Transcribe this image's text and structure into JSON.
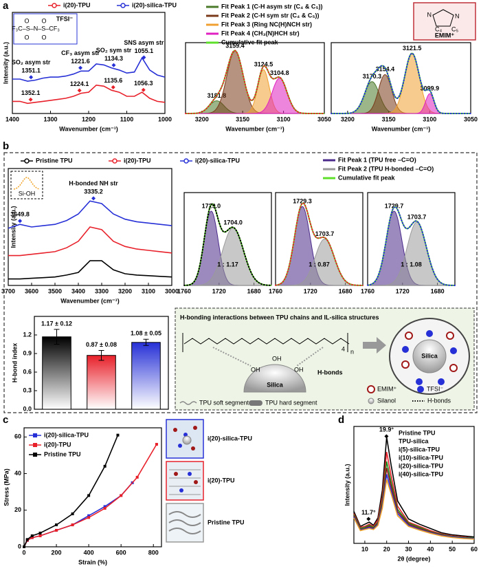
{
  "chart_data": [
    {
      "type": "line",
      "x_label": "Wavenumber (cm⁻¹)",
      "y_label": "Intensity (a.u.)",
      "x": [
        1400,
        1380,
        1360,
        1340,
        1320,
        1300,
        1280,
        1260,
        1240,
        1220,
        1200,
        1180,
        1160,
        1140,
        1120,
        1100,
        1080,
        1060,
        1040,
        1020,
        1000
      ],
      "xlim": [
        1400,
        1000
      ],
      "xticks": [
        1400,
        1300,
        1200,
        1100,
        1000
      ],
      "ylim": [
        0,
        10
      ],
      "series": [
        {
          "name": "i(20)-TPU",
          "color": "#e8202a",
          "values": [
            1.2,
            1.2,
            1.0,
            1.1,
            1.2,
            1.3,
            1.4,
            1.5,
            1.7,
            2.0,
            2.1,
            2.8,
            2.7,
            2.3,
            2.1,
            1.7,
            1.7,
            2.1,
            1.5,
            1.2,
            1.1
          ],
          "peaks": [
            {
              "x": 1352.1
            },
            {
              "x": 1224.1
            },
            {
              "x": 1135.6
            },
            {
              "x": 1056.3
            }
          ]
        },
        {
          "name": "i(20)-silica-TPU",
          "color": "#2630d6",
          "values": [
            3.4,
            3.4,
            3.2,
            3.3,
            3.5,
            3.6,
            3.6,
            3.7,
            3.9,
            4.2,
            4.2,
            4.9,
            4.8,
            4.5,
            4.3,
            4.0,
            4.1,
            5.5,
            4.3,
            3.8,
            3.6
          ],
          "peaks": [
            {
              "x": 1351.1,
              "name": "SO₂ asym str"
            },
            {
              "x": 1221.6,
              "name": "CF₃ asym str"
            },
            {
              "x": 1134.3,
              "name": "SO₂ sym str"
            },
            {
              "x": 1055.1,
              "name": "SNS asym str"
            }
          ]
        }
      ]
    },
    {
      "type": "fit",
      "x_label": "Wavenumber (cm⁻¹)",
      "xlim": [
        3220,
        3050
      ],
      "xticks": [
        3200,
        3150,
        3100,
        3050
      ],
      "ylim": [
        0,
        1
      ],
      "data_color": "#e8202a",
      "series": [
        {
          "name": "Fit Peak 1 (C-H asym str (C₄ & C₅))",
          "color": "#4a7a2a",
          "center": 3181.8,
          "height": 0.18,
          "width": 9
        },
        {
          "name": "Fit Peak 2 (C-H sym str (C₄ & C₅))",
          "color": "#7a3a1a",
          "center": 3159.4,
          "height": 0.88,
          "width": 10
        },
        {
          "name": "Fit Peak 3 (Ring NC(H)NCH str)",
          "color": "#f0a030",
          "center": 3124.5,
          "height": 0.62,
          "width": 7
        },
        {
          "name": "Fit Peak 4 (CH₃(N)HCH str)",
          "color": "#e020c0",
          "center": 3104.8,
          "height": 0.5,
          "width": 9
        }
      ],
      "cumulative": {
        "name": "Cumulative fit peak",
        "color": "#5ee02a"
      }
    },
    {
      "type": "fit",
      "x_label": "Wavenumber (cm⁻¹)",
      "xlim": [
        3220,
        3050
      ],
      "xticks": [
        3200,
        3150,
        3100,
        3050
      ],
      "ylim": [
        0,
        1
      ],
      "data_color": "#2630d6",
      "series": [
        {
          "color": "#4a7a2a",
          "center": 3170.3,
          "height": 0.45,
          "width": 9
        },
        {
          "color": "#7a3a1a",
          "center": 3154.4,
          "height": 0.55,
          "width": 8
        },
        {
          "color": "#f0a030",
          "center": 3121.5,
          "height": 0.85,
          "width": 9
        },
        {
          "color": "#e020c0",
          "center": 3099.9,
          "height": 0.28,
          "width": 5
        }
      ],
      "cumulative": {
        "color": "#5ee02a"
      }
    },
    {
      "type": "line",
      "x_label": "Wavenumber (cm⁻¹)",
      "y_label": "Intensity (a.u.)",
      "x": [
        3700,
        3650,
        3600,
        3550,
        3500,
        3450,
        3400,
        3350,
        3300,
        3250,
        3200,
        3150,
        3100,
        3050,
        3000
      ],
      "xlim": [
        3700,
        3000
      ],
      "xticks": [
        3700,
        3600,
        3500,
        3400,
        3300,
        3200,
        3100,
        3000
      ],
      "ylim": [
        0,
        9
      ],
      "series": [
        {
          "name": "Pristine TPU",
          "color": "#000000",
          "values": [
            0.5,
            0.5,
            0.55,
            0.6,
            0.65,
            0.8,
            1.0,
            1.9,
            1.9,
            1.2,
            0.9,
            0.8,
            0.75,
            0.7,
            0.65
          ]
        },
        {
          "name": "i(20)-TPU",
          "color": "#e8202a",
          "values": [
            2.3,
            2.3,
            2.4,
            2.5,
            2.6,
            2.9,
            3.4,
            4.5,
            4.3,
            3.4,
            3.0,
            2.8,
            2.7,
            2.6,
            2.5
          ]
        },
        {
          "name": "i(20)-silica-TPU",
          "color": "#2630d6",
          "values": [
            4.4,
            4.7,
            4.5,
            4.6,
            4.7,
            5.0,
            5.5,
            6.5,
            6.3,
            5.5,
            5.1,
            4.9,
            4.8,
            4.7,
            4.6
          ],
          "peaks": [
            {
              "x": 3649.8
            },
            {
              "x": 3335.2,
              "name": "H-bonded NH str"
            }
          ]
        }
      ]
    },
    {
      "type": "fit",
      "xlim": [
        1760,
        1660
      ],
      "xticks": [
        1760,
        1720,
        1680
      ],
      "ylim": [
        0,
        1
      ],
      "data_color": "#000000",
      "label_color": "#000000",
      "ratio_label": "1 : 1.17",
      "series": [
        {
          "name": "Fit Peak 1 (TPU free –C=O)",
          "color": "#4a2a8a",
          "center": {
            "value": 1729,
            "label": "1729.0"
          },
          "height": 0.8,
          "width": 8
        },
        {
          "name": "Fit Peak 2 (TPU H-bonded –C=O)",
          "color": "#9a9a9a",
          "center": {
            "value": 1704,
            "label": "1704.0"
          },
          "height": 0.62,
          "width": 12
        }
      ],
      "cumulative": {
        "name": "Cumulative fit peak",
        "color": "#5ee02a"
      }
    },
    {
      "type": "fit",
      "xlim": [
        1760,
        1660
      ],
      "xticks": [
        1760,
        1720,
        1680
      ],
      "ylim": [
        0,
        1
      ],
      "data_color": "#e8202a",
      "label_color": "#e8202a",
      "ratio_label": "1 : 0.87",
      "series": [
        {
          "color": "#4a2a8a",
          "center": 1729.3,
          "height": 0.85,
          "width": 9
        },
        {
          "color": "#9a9a9a",
          "center": 1703.7,
          "height": 0.5,
          "width": 11
        }
      ],
      "cumulative": {
        "color": "#5ee02a"
      }
    },
    {
      "type": "fit",
      "xlim": [
        1760,
        1660
      ],
      "xticks": [
        1760,
        1720,
        1680
      ],
      "ylim": [
        0,
        1
      ],
      "data_color": "#2630d6",
      "label_color": "#2630d6",
      "ratio_label": "1 : 1.08",
      "series": [
        {
          "color": "#4a2a8a",
          "center": 1729.7,
          "height": 0.8,
          "width": 9
        },
        {
          "color": "#9a9a9a",
          "center": 1703.7,
          "height": 0.68,
          "width": 11
        }
      ],
      "cumulative": {
        "color": "#5ee02a"
      }
    },
    {
      "type": "bar",
      "y_label": "H-bond index",
      "categories": [
        null,
        null,
        null
      ],
      "values": [
        1.17,
        0.87,
        1.08
      ],
      "errors": [
        0.12,
        0.08,
        0.05
      ],
      "value_labels": [
        "1.17 ± 0.12",
        "0.87 ± 0.08",
        "1.08 ± 0.05"
      ],
      "colors": [
        "#000000",
        "#e8202a",
        "#2630d6"
      ],
      "ylim": [
        0,
        1.5
      ],
      "yticks": [
        {
          "value": 0,
          "label": "0.0"
        },
        0.3,
        0.6,
        0.9,
        1.2
      ]
    },
    {
      "type": "line",
      "x_label": "Strain (%)",
      "y_label": "Stress (MPa)",
      "xlim": [
        0,
        850
      ],
      "xticks": [
        0,
        200,
        400,
        600,
        800
      ],
      "ylim": [
        0,
        65
      ],
      "yticks": [
        0,
        20,
        40,
        60
      ],
      "series": [
        {
          "name": "i(20)-silica-TPU",
          "color": "#2630d6",
          "x": [
            0,
            20,
            50,
            100,
            200,
            300,
            400,
            500,
            600,
            670
          ],
          "values": [
            0,
            3.5,
            5,
            6,
            9,
            12,
            17,
            22,
            28,
            35
          ]
        },
        {
          "name": "i(20)-TPU",
          "color": "#e8202a",
          "x": [
            0,
            20,
            50,
            100,
            200,
            300,
            400,
            500,
            600,
            700,
            820
          ],
          "values": [
            0,
            3.5,
            5,
            6,
            9,
            12,
            16,
            21,
            28,
            38,
            56
          ]
        },
        {
          "name": "Pristine TPU",
          "color": "#000000",
          "x": [
            0,
            20,
            50,
            100,
            200,
            300,
            400,
            500,
            580
          ],
          "values": [
            0,
            4,
            6,
            7.5,
            12,
            18,
            28,
            44,
            61
          ]
        }
      ]
    },
    {
      "type": "line",
      "x_label": "2θ (degree)",
      "y_label": "Intensity (a.u.)",
      "x": [
        5,
        8,
        10,
        12,
        14,
        16,
        18,
        20,
        22,
        25,
        30,
        35,
        40,
        45,
        50,
        55,
        60
      ],
      "xlim": [
        5,
        60
      ],
      "xticks": [
        10,
        20,
        30,
        40,
        50,
        60
      ],
      "ylim": [
        0,
        11
      ],
      "series": [
        {
          "name": "Pristine TPU",
          "color": "#000000",
          "values": [
            3.0,
            1.6,
            1.8,
            2.0,
            1.7,
            2.4,
            5.0,
            10.0,
            7.4,
            4.0,
            2.3,
            1.8,
            1.4,
            1.0,
            0.8,
            0.7,
            0.6
          ],
          "peaks": [
            {
              "x": 19.9,
              "label": "19.9°"
            },
            {
              "x": 11.7,
              "label": "11.7°"
            }
          ]
        },
        {
          "name": "TPU-silica",
          "color": "#e8202a",
          "values": [
            2.8,
            1.5,
            1.6,
            1.8,
            1.6,
            2.2,
            4.4,
            8.6,
            6.4,
            3.5,
            2.0,
            1.6,
            1.2,
            0.9,
            0.7,
            0.6,
            0.5
          ]
        },
        {
          "name": "i(5)-silica-TPU",
          "color": "#1a8a1a",
          "values": [
            2.7,
            1.4,
            1.5,
            1.7,
            1.5,
            2.0,
            4.0,
            7.7,
            5.8,
            3.2,
            1.9,
            1.5,
            1.1,
            0.85,
            0.65,
            0.55,
            0.5
          ]
        },
        {
          "name": "i(10)-silica-TPU",
          "color": "#8b1a1a",
          "values": [
            2.6,
            1.3,
            1.4,
            1.6,
            1.4,
            1.9,
            3.7,
            7.1,
            5.4,
            3.0,
            1.8,
            1.4,
            1.05,
            0.8,
            0.6,
            0.5,
            0.45
          ]
        },
        {
          "name": "i(20)-silica-TPU",
          "color": "#2630d6",
          "values": [
            2.5,
            1.25,
            1.35,
            1.5,
            1.35,
            1.8,
            3.5,
            6.5,
            5.0,
            2.8,
            1.7,
            1.3,
            1.0,
            0.75,
            0.6,
            0.5,
            0.45
          ]
        },
        {
          "name": "i(40)-silica-TPU",
          "color": "#f0a020",
          "values": [
            2.4,
            1.2,
            1.3,
            1.4,
            1.3,
            1.7,
            3.3,
            6.0,
            4.7,
            2.6,
            1.6,
            1.25,
            0.95,
            0.7,
            0.55,
            0.45,
            0.4
          ]
        }
      ]
    }
  ],
  "figure": {
    "panel_labels": [
      "a",
      "b",
      "c",
      "d"
    ],
    "tfsi": {
      "label": "TFSI⁻",
      "formula": "F₃C–S–N–S–CF₃",
      "oxygen": "O"
    },
    "emim": {
      "label": "EMIM⁺",
      "nitrogen": "N",
      "c4": "C₄",
      "c5": "C₅"
    },
    "si_oh": "Si-OH",
    "scheme_b": {
      "title": "H-bonding interactions between TPU chains and IL-silica structures",
      "silica": "Silica",
      "h_bonds": "H-bonds",
      "oh": "OH",
      "repeat_n": "n",
      "repeat_4": "4",
      "soft": "TPU soft segment",
      "hard": "TPU hard segment",
      "emim": "EMIM⁺",
      "tfsi": "TFSI⁻",
      "silanol": "Silanol",
      "legend_h_bonds": "H-bonds"
    },
    "scheme_c": [
      "i(20)-silica-TPU",
      "i(20)-TPU",
      "Pristine TPU"
    ]
  }
}
